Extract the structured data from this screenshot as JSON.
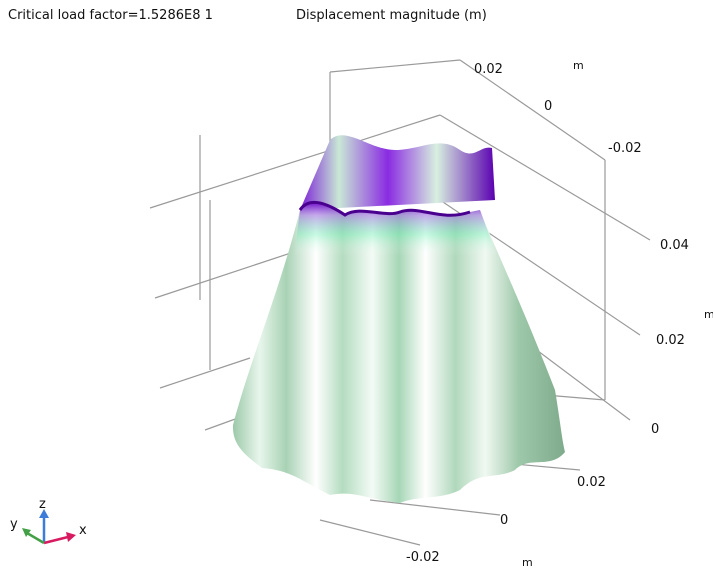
{
  "header": {
    "title": "Critical load factor=1.5286E8 1",
    "subtitle": "Displacement magnitude (m)"
  },
  "axes": {
    "y_ticks": [
      "0.02",
      "0",
      "-0.02"
    ],
    "y_unit": "m",
    "z_ticks": [
      "0.04",
      "0.02",
      "0"
    ],
    "z_unit": "m",
    "x_ticks": [
      "0.02",
      "0",
      "-0.02"
    ],
    "x_unit": "m"
  },
  "triad": {
    "x": "x",
    "y": "y",
    "z": "z"
  }
}
